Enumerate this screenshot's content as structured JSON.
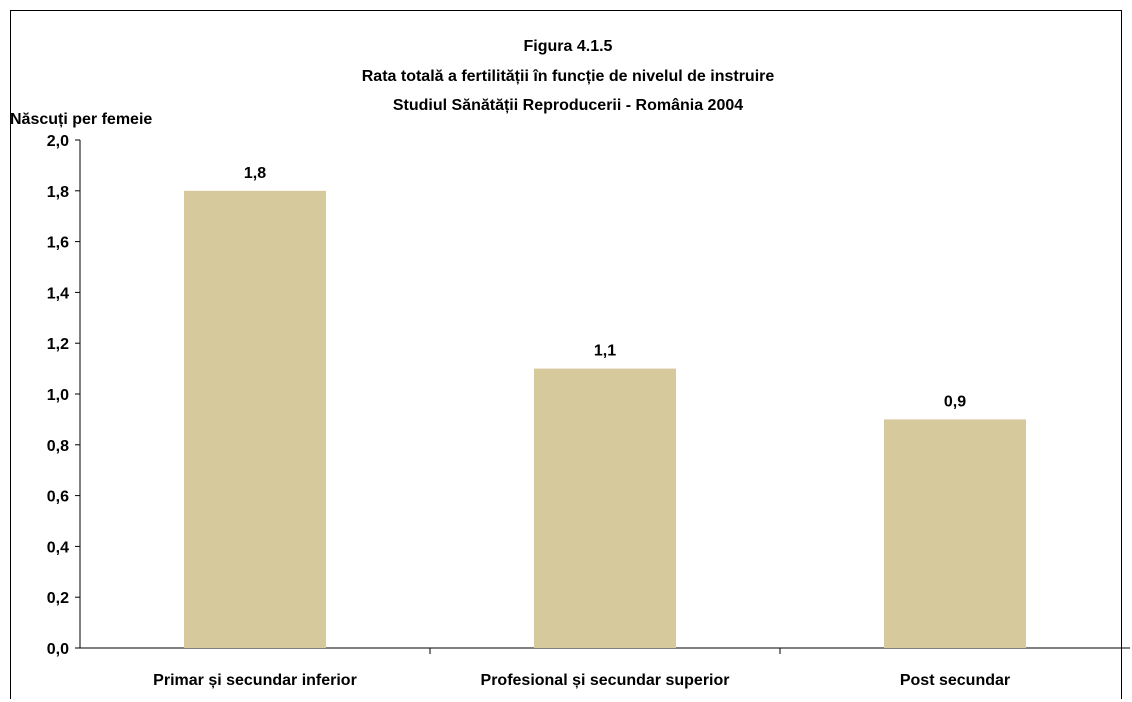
{
  "chart_data": {
    "type": "bar",
    "title_lines": [
      "Figura 4.1.5",
      "Rata totală a fertilității în funcție de nivelul de instruire",
      "Studiul Sănătății Reproducerii - România 2004"
    ],
    "ylabel": "Născuți per femeie",
    "xlabel": "",
    "categories": [
      "Primar și secundar inferior",
      "Profesional și secundar superior",
      "Post secundar"
    ],
    "values": [
      1.8,
      1.1,
      0.9
    ],
    "data_labels": [
      "1,8",
      "1,1",
      "0,9"
    ],
    "ylim": [
      0,
      2.0
    ],
    "yticks": [
      0.0,
      0.2,
      0.4,
      0.6,
      0.8,
      1.0,
      1.2,
      1.4,
      1.6,
      1.8,
      2.0
    ],
    "ytick_labels": [
      "0,0",
      "0,2",
      "0,4",
      "0,6",
      "0,8",
      "1,0",
      "1,2",
      "1,4",
      "1,6",
      "1,8",
      "2,0"
    ],
    "bar_color": "#d6c99c",
    "grid": false,
    "legend": "none"
  }
}
